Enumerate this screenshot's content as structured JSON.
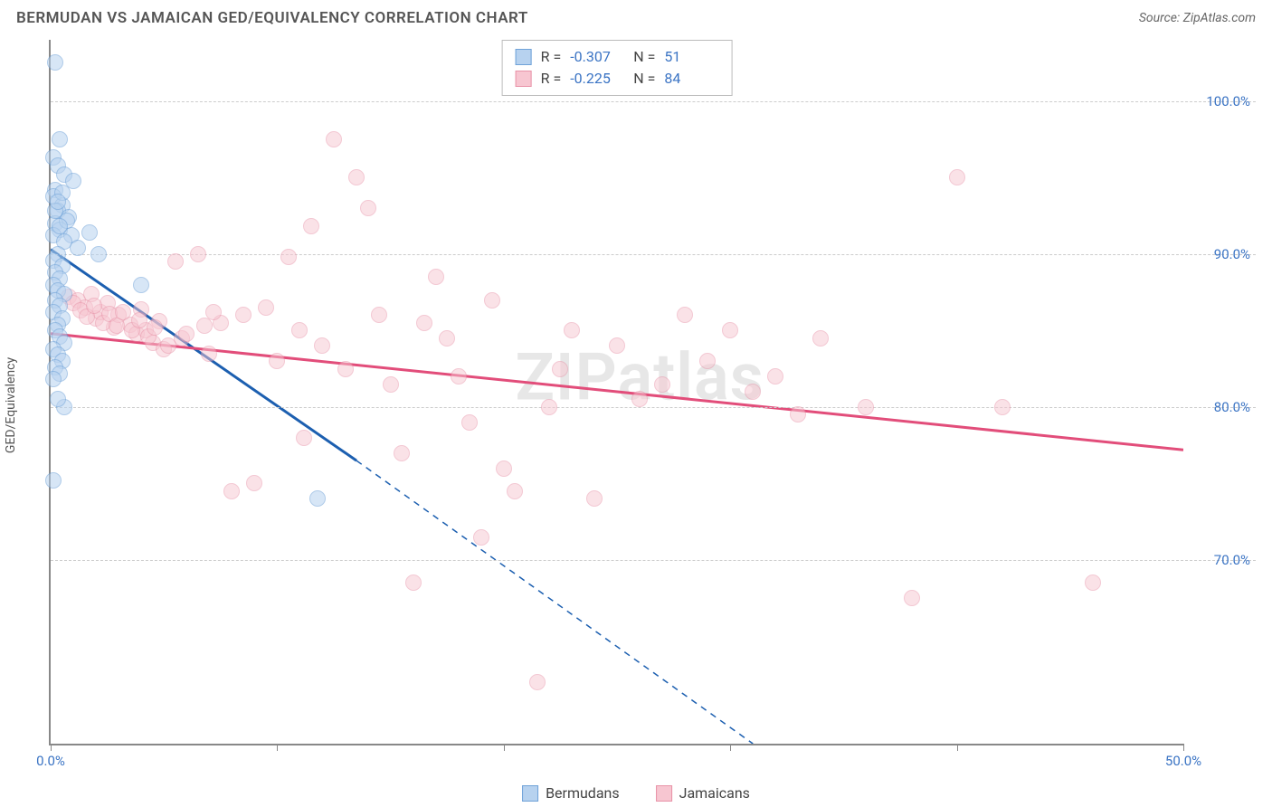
{
  "title": "BERMUDAN VS JAMAICAN GED/EQUIVALENCY CORRELATION CHART",
  "source_label": "Source: ZipAtlas.com",
  "y_axis_label": "GED/Equivalency",
  "watermark": "ZIPatlas",
  "chart": {
    "type": "scatter",
    "xlim": [
      0,
      50
    ],
    "ylim": [
      58,
      104
    ],
    "x_ticks": [
      0,
      10,
      20,
      30,
      40,
      50
    ],
    "x_tick_labels": {
      "0": "0.0%",
      "50": "50.0%"
    },
    "y_ticks": [
      70,
      80,
      90,
      100
    ],
    "y_tick_labels": [
      "70.0%",
      "80.0%",
      "90.0%",
      "100.0%"
    ],
    "background_color": "#ffffff",
    "grid_color": "#cccccc",
    "axis_color": "#888888",
    "marker_radius": 9,
    "marker_stroke_width": 1.5,
    "trend_line_width": 3,
    "series": [
      {
        "name": "Bermudans",
        "fill": "#b7d2ef",
        "stroke": "#6fa2d8",
        "fill_opacity": 0.55,
        "R": "-0.307",
        "N": "51",
        "trend": {
          "x1": 0,
          "y1": 90.3,
          "x2": 13.5,
          "y2": 76.5,
          "x2_ext": 31,
          "y2_ext": 58,
          "color": "#1c5fb0",
          "dash_after_data": true
        },
        "points": [
          [
            0.2,
            102.5
          ],
          [
            0.4,
            97.5
          ],
          [
            0.1,
            96.3
          ],
          [
            0.3,
            95.8
          ],
          [
            0.6,
            95.2
          ],
          [
            1.0,
            94.8
          ],
          [
            0.2,
            94.2
          ],
          [
            0.1,
            93.8
          ],
          [
            0.5,
            93.2
          ],
          [
            0.3,
            92.8
          ],
          [
            0.8,
            92.4
          ],
          [
            0.2,
            92.0
          ],
          [
            0.4,
            91.6
          ],
          [
            0.1,
            91.2
          ],
          [
            0.9,
            91.2
          ],
          [
            1.7,
            91.4
          ],
          [
            0.6,
            90.8
          ],
          [
            1.2,
            90.4
          ],
          [
            0.3,
            90.0
          ],
          [
            0.1,
            89.6
          ],
          [
            0.5,
            89.2
          ],
          [
            0.2,
            88.8
          ],
          [
            0.4,
            88.4
          ],
          [
            0.1,
            88.0
          ],
          [
            0.3,
            87.6
          ],
          [
            0.6,
            87.4
          ],
          [
            0.2,
            87.0
          ],
          [
            0.4,
            86.6
          ],
          [
            0.1,
            86.2
          ],
          [
            0.5,
            85.8
          ],
          [
            0.3,
            85.4
          ],
          [
            0.2,
            85.0
          ],
          [
            0.4,
            84.6
          ],
          [
            2.1,
            90.0
          ],
          [
            4.0,
            88.0
          ],
          [
            0.6,
            84.2
          ],
          [
            0.1,
            83.8
          ],
          [
            0.3,
            83.4
          ],
          [
            0.5,
            83.0
          ],
          [
            0.2,
            82.6
          ],
          [
            0.4,
            82.2
          ],
          [
            0.1,
            81.8
          ],
          [
            0.6,
            80.0
          ],
          [
            0.3,
            80.5
          ],
          [
            0.1,
            75.2
          ],
          [
            11.8,
            74.0
          ],
          [
            0.2,
            92.8
          ],
          [
            0.5,
            94.0
          ],
          [
            0.3,
            93.4
          ],
          [
            0.7,
            92.2
          ],
          [
            0.4,
            91.8
          ]
        ]
      },
      {
        "name": "Jamaicans",
        "fill": "#f7c6d1",
        "stroke": "#e893a8",
        "fill_opacity": 0.5,
        "R": "-0.225",
        "N": "84",
        "trend": {
          "x1": 0,
          "y1": 84.8,
          "x2": 50,
          "y2": 77.2,
          "color": "#e24d7a",
          "dash_after_data": false
        },
        "points": [
          [
            0.8,
            87.2
          ],
          [
            1.2,
            87.0
          ],
          [
            1.5,
            86.5
          ],
          [
            1.8,
            87.4
          ],
          [
            2.0,
            85.8
          ],
          [
            2.2,
            86.2
          ],
          [
            2.5,
            86.8
          ],
          [
            2.8,
            85.2
          ],
          [
            3.0,
            86.0
          ],
          [
            3.5,
            85.4
          ],
          [
            3.8,
            84.8
          ],
          [
            4.0,
            86.4
          ],
          [
            4.2,
            85.0
          ],
          [
            4.5,
            84.2
          ],
          [
            4.8,
            85.6
          ],
          [
            5.0,
            83.8
          ],
          [
            5.5,
            89.5
          ],
          [
            5.8,
            84.5
          ],
          [
            6.5,
            90.0
          ],
          [
            7.0,
            83.5
          ],
          [
            7.5,
            85.5
          ],
          [
            8.0,
            74.5
          ],
          [
            8.5,
            86.0
          ],
          [
            9.0,
            75.0
          ],
          [
            9.5,
            86.5
          ],
          [
            10.0,
            83.0
          ],
          [
            10.5,
            89.8
          ],
          [
            11.0,
            85.0
          ],
          [
            11.5,
            91.8
          ],
          [
            12.0,
            84.0
          ],
          [
            12.5,
            97.5
          ],
          [
            13.0,
            82.5
          ],
          [
            13.5,
            95.0
          ],
          [
            14.0,
            93.0
          ],
          [
            14.5,
            86.0
          ],
          [
            15.0,
            81.5
          ],
          [
            15.5,
            77.0
          ],
          [
            16.0,
            68.5
          ],
          [
            16.5,
            85.5
          ],
          [
            17.0,
            88.5
          ],
          [
            17.5,
            84.5
          ],
          [
            18.0,
            82.0
          ],
          [
            18.5,
            79.0
          ],
          [
            19.0,
            71.5
          ],
          [
            19.5,
            87.0
          ],
          [
            20.0,
            76.0
          ],
          [
            20.5,
            74.5
          ],
          [
            21.5,
            62.0
          ],
          [
            22.0,
            80.0
          ],
          [
            22.5,
            82.5
          ],
          [
            23.0,
            85.0
          ],
          [
            24.0,
            74.0
          ],
          [
            25.0,
            84.0
          ],
          [
            26.0,
            80.5
          ],
          [
            27.0,
            81.5
          ],
          [
            28.0,
            86.0
          ],
          [
            29.0,
            83.0
          ],
          [
            30.0,
            85.0
          ],
          [
            31.0,
            81.0
          ],
          [
            32.0,
            82.0
          ],
          [
            33.0,
            79.5
          ],
          [
            34.0,
            84.5
          ],
          [
            36.0,
            80.0
          ],
          [
            38.0,
            67.5
          ],
          [
            40.0,
            95.0
          ],
          [
            42.0,
            80.0
          ],
          [
            46.0,
            68.5
          ],
          [
            1.0,
            86.8
          ],
          [
            1.3,
            86.3
          ],
          [
            1.6,
            85.9
          ],
          [
            1.9,
            86.6
          ],
          [
            2.3,
            85.5
          ],
          [
            2.6,
            86.1
          ],
          [
            2.9,
            85.3
          ],
          [
            3.2,
            86.2
          ],
          [
            3.6,
            85.0
          ],
          [
            3.9,
            85.7
          ],
          [
            4.3,
            84.6
          ],
          [
            4.6,
            85.2
          ],
          [
            5.2,
            84.0
          ],
          [
            6.0,
            84.8
          ],
          [
            6.8,
            85.3
          ],
          [
            7.2,
            86.2
          ],
          [
            11.2,
            78.0
          ]
        ]
      }
    ]
  },
  "correlation_legend": {
    "R_label": "R =",
    "N_label": "N ="
  },
  "bottom_legend_labels": [
    "Bermudans",
    "Jamaicans"
  ]
}
